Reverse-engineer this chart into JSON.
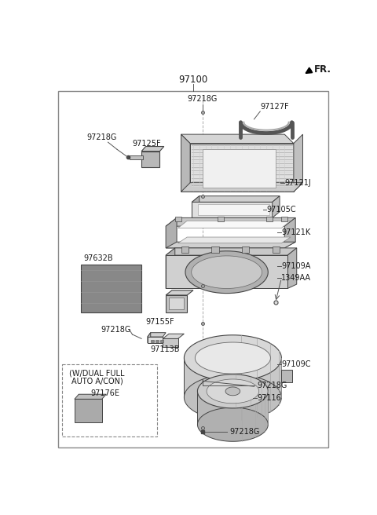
{
  "bg_color": "#ffffff",
  "text_color": "#1a1a1a",
  "border_color": "#999999",
  "title": "97100",
  "fr_label": "FR.",
  "font_size": 7.0,
  "font_size_title": 8.5,
  "inset_label1": "(W/DUAL FULL",
  "inset_label2": "AUTO A/CON)",
  "inset_part": "97176E"
}
